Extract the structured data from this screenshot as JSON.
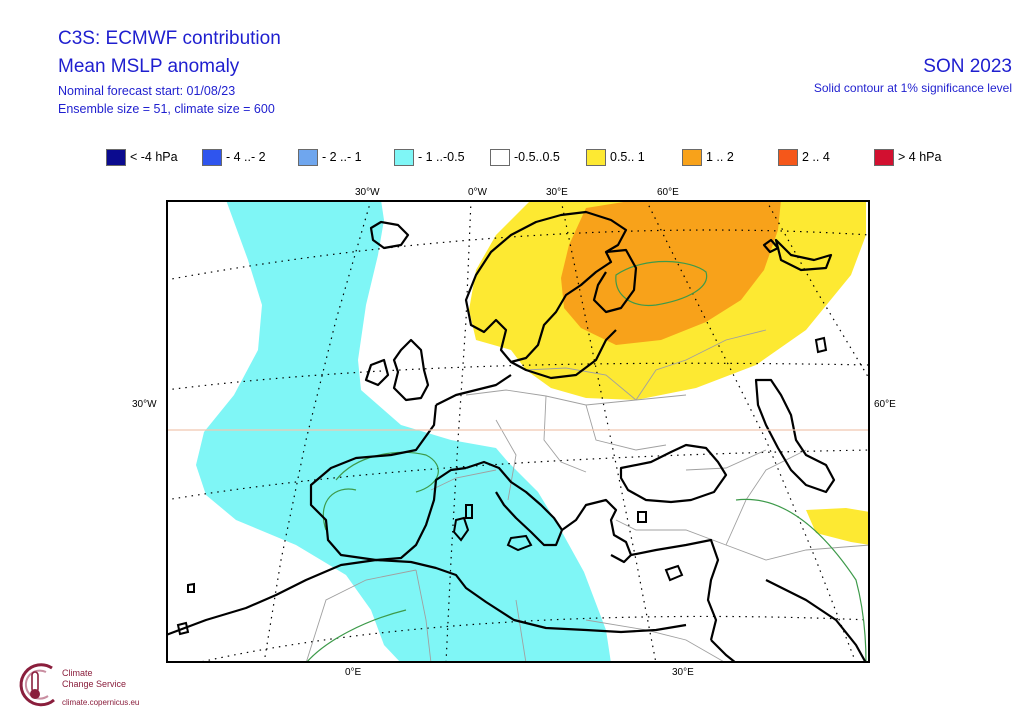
{
  "header": {
    "title": "C3S: ECMWF contribution",
    "subtitle": "Mean MSLP anomaly",
    "forecast_start": "Nominal forecast start: 01/08/23",
    "ensemble": "Ensemble size = 51, climate size = 600",
    "season": "SON 2023",
    "significance": "Solid contour at 1% significance level"
  },
  "legend": {
    "items": [
      {
        "label": "< -4 hPa",
        "color": "#0b0b8f"
      },
      {
        "label": "- 4 ..- 2",
        "color": "#2f55ee"
      },
      {
        "label": "- 2 ..- 1",
        "color": "#6fa6ee"
      },
      {
        "label": "- 1 ..-0.5",
        "color": "#7ff6f6"
      },
      {
        "label": "-0.5..0.5",
        "color": "#ffffff"
      },
      {
        "label": "0.5.. 1",
        "color": "#fde932"
      },
      {
        "label": "1 .. 2",
        "color": "#f8a21a"
      },
      {
        "label": "2 .. 4",
        "color": "#f5571a"
      },
      {
        "label": "> 4 hPa",
        "color": "#d21030"
      }
    ]
  },
  "map": {
    "coords": {
      "top_30w": "30°W",
      "top_0w": "0°W",
      "top_30e": "30°E",
      "top_60e": "60°E",
      "left_30w": "30°W",
      "right_60e": "60°E",
      "bottom_0e": "0°E",
      "bottom_30e": "30°E"
    },
    "colors": {
      "land_outline": "#000000",
      "borders": "#a0a0a0",
      "significance_contour": "#3d9a4a",
      "graticule": "#000000",
      "frame": "#000000"
    }
  },
  "logo": {
    "line1": "Climate",
    "line2": "Change Service",
    "url": "climate.copernicus.eu",
    "color": "#8a1e3c"
  }
}
